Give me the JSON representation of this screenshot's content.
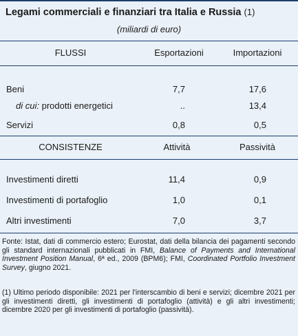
{
  "title": "Legami commerciali e finanziari tra Italia e Russia",
  "title_note": "(1)",
  "subtitle": "(miliardi di euro)",
  "flussi": {
    "header": "FLUSSI",
    "col1": "Esportazioni",
    "col2": "Importazioni",
    "rows": [
      {
        "label": "Beni",
        "v1": "7,7",
        "v2": "17,6"
      },
      {
        "label_italic": "di cui:",
        "label": "prodotti energetici",
        "v1": "..",
        "v2": "13,4"
      },
      {
        "label": "Servizi",
        "v1": "0,8",
        "v2": "0,5"
      }
    ]
  },
  "consistenze": {
    "header": "CONSISTENZE",
    "col1": "Attività",
    "col2": "Passività",
    "rows": [
      {
        "label": "Investimenti diretti",
        "v1": "11,4",
        "v2": "0,9"
      },
      {
        "label": "Investimenti di portafoglio",
        "v1": "1,0",
        "v2": "0,1"
      },
      {
        "label": "Altri investimenti",
        "v1": "7,0",
        "v2": "3,7"
      }
    ]
  },
  "source": {
    "part1": "Fonte: Istat, dati di commercio estero; Eurostat, dati della bilancia dei pagamenti secondo gli standard internazionali pubblicati in FMI,",
    "italic1": "Balance of Payments and International Investment Position Manual",
    "part2": ", 6ª ed., 2009 (BPM6); FMI,",
    "italic2": "Coordinated Portfolio Investment Survey",
    "part3": ", giugno 2021."
  },
  "footnote": "(1) Ultimo periodo disponibile: 2021 per l'interscambio di beni e servizi; dicembre 2021 per gli investimenti diretti, gli investimenti di portafoglio (attività) e gli altri investimenti; dicembre 2020 per gli investimenti di portafoglio (passività)."
}
